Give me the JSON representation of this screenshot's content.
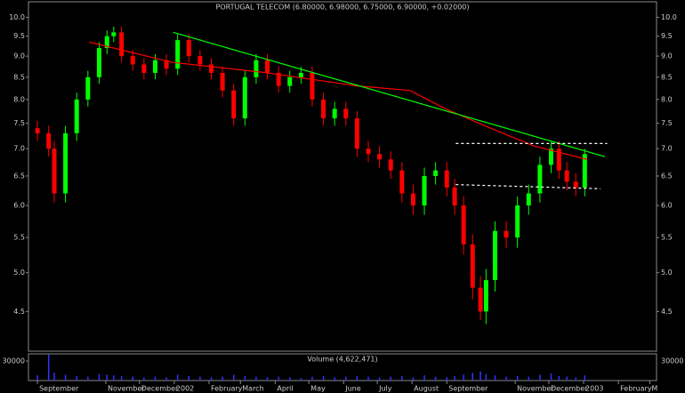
{
  "chart_data": [
    {
      "type": "candlestick",
      "title": "PORTUGAL TELECOM (6.80000, 6.98000, 6.75000, 6.90000, +0.02000)",
      "log_scale": true,
      "up_color": "#00ff00",
      "down_color": "#ff0000",
      "x": [
        0,
        10,
        15,
        25,
        35,
        45,
        55,
        62,
        68,
        75,
        85,
        95,
        105,
        115,
        125,
        135,
        145,
        155,
        165,
        175,
        185,
        195,
        205,
        215,
        225,
        235,
        245,
        255,
        265,
        275,
        285,
        295,
        305,
        315,
        325,
        335,
        345,
        355,
        365,
        372,
        380,
        388,
        395,
        400,
        408,
        418,
        428,
        438,
        448,
        458,
        465,
        472,
        480,
        488
      ],
      "open": [
        7.4,
        7.3,
        7.0,
        6.2,
        7.3,
        8.0,
        8.5,
        9.2,
        9.5,
        9.6,
        9.0,
        8.8,
        8.6,
        8.9,
        8.7,
        9.4,
        9.0,
        8.8,
        8.6,
        8.2,
        7.6,
        8.5,
        8.9,
        8.6,
        8.3,
        8.5,
        8.6,
        8.0,
        7.6,
        7.8,
        7.6,
        7.0,
        6.9,
        6.8,
        6.6,
        6.2,
        6.0,
        6.5,
        6.6,
        6.3,
        6.0,
        5.4,
        4.8,
        4.5,
        4.9,
        5.6,
        5.5,
        6.0,
        6.2,
        6.7,
        7.0,
        6.6,
        6.4,
        6.3
      ],
      "high": [
        7.55,
        7.45,
        7.15,
        7.45,
        8.15,
        8.65,
        9.35,
        9.65,
        9.75,
        9.75,
        9.15,
        8.95,
        9.05,
        9.05,
        9.55,
        9.55,
        9.15,
        8.95,
        8.75,
        8.35,
        8.65,
        9.05,
        9.05,
        8.75,
        8.65,
        8.75,
        8.75,
        8.15,
        7.95,
        7.95,
        7.75,
        7.15,
        7.05,
        6.95,
        6.75,
        6.35,
        6.65,
        6.75,
        6.75,
        6.45,
        6.15,
        5.55,
        4.95,
        5.05,
        5.75,
        5.75,
        6.15,
        6.35,
        6.85,
        7.15,
        7.15,
        6.75,
        6.55,
        7.0
      ],
      "low": [
        7.15,
        6.85,
        6.05,
        6.05,
        7.15,
        7.85,
        8.35,
        9.05,
        9.35,
        8.85,
        8.65,
        8.45,
        8.45,
        8.55,
        8.55,
        8.85,
        8.65,
        8.45,
        8.05,
        7.45,
        7.45,
        8.35,
        8.45,
        8.15,
        8.15,
        8.35,
        7.85,
        7.45,
        7.45,
        7.45,
        6.85,
        6.75,
        6.65,
        6.45,
        6.05,
        5.85,
        5.85,
        6.35,
        6.15,
        5.85,
        5.25,
        4.65,
        4.4,
        4.35,
        4.75,
        5.35,
        5.35,
        5.85,
        6.05,
        6.55,
        6.45,
        6.25,
        6.15,
        6.15
      ],
      "close": [
        7.3,
        7.0,
        6.2,
        7.3,
        8.0,
        8.5,
        9.2,
        9.5,
        9.6,
        9.0,
        8.8,
        8.6,
        8.9,
        8.7,
        9.4,
        9.0,
        8.8,
        8.6,
        8.2,
        7.6,
        8.5,
        8.9,
        8.6,
        8.3,
        8.5,
        8.6,
        8.0,
        7.6,
        7.8,
        7.6,
        7.0,
        6.9,
        6.8,
        6.6,
        6.2,
        6.0,
        6.5,
        6.6,
        6.3,
        6.0,
        5.4,
        4.8,
        4.5,
        4.9,
        5.6,
        5.5,
        6.0,
        6.2,
        6.7,
        7.0,
        6.6,
        6.4,
        6.3,
        6.9
      ],
      "overlays": [
        {
          "color": "#ff0000",
          "x": [
            46,
            120,
            205,
            285,
            332,
            364,
            404,
            443,
            490
          ],
          "values": [
            9.35,
            8.85,
            8.6,
            8.3,
            8.2,
            7.8,
            7.4,
            7.05,
            6.8
          ]
        },
        {
          "color": "#00ff00",
          "x": [
            121,
            506
          ],
          "values": [
            9.6,
            6.85
          ]
        },
        {
          "color": "#ffffff",
          "dashed": true,
          "x": [
            373,
            508
          ],
          "values": [
            7.1,
            7.1
          ]
        },
        {
          "color": "#ffffff",
          "dashed": true,
          "x": [
            373,
            502
          ],
          "values": [
            6.35,
            6.28
          ]
        }
      ],
      "xlim": [
        -8,
        552
      ],
      "ylim": [
        4.04,
        10.43
      ],
      "yticks": [
        4.5,
        {
          "value": 5,
          "label": "5.0"
        },
        5.5,
        {
          "value": 6,
          "label": "6.0"
        },
        6.5,
        {
          "value": 7,
          "label": "7.0"
        },
        7.5,
        {
          "value": 8,
          "label": "8.0"
        },
        8.5,
        {
          "value": 9,
          "label": "9.0"
        },
        9.5,
        {
          "value": 10,
          "label": "10.0"
        }
      ]
    },
    {
      "type": "bar",
      "title": "Volume (4,622,471)",
      "color": "#3333ff",
      "x": [
        0,
        10,
        15,
        25,
        35,
        45,
        55,
        62,
        68,
        75,
        85,
        95,
        105,
        115,
        125,
        135,
        145,
        155,
        165,
        175,
        185,
        195,
        205,
        215,
        225,
        235,
        245,
        255,
        265,
        275,
        285,
        295,
        305,
        315,
        325,
        335,
        345,
        355,
        365,
        372,
        380,
        388,
        395,
        400,
        408,
        418,
        428,
        438,
        448,
        458,
        465,
        472,
        480,
        488
      ],
      "values": [
        8000,
        40000,
        12000,
        9000,
        7000,
        6000,
        10000,
        9000,
        8000,
        7000,
        6000,
        5000,
        6000,
        5000,
        9000,
        7000,
        6000,
        5000,
        6000,
        9000,
        7000,
        6000,
        5000,
        6000,
        5000,
        4000,
        6000,
        7000,
        5000,
        6000,
        7000,
        6000,
        5000,
        6000,
        7000,
        5000,
        8000,
        6000,
        5000,
        7000,
        9000,
        12000,
        14000,
        10000,
        8000,
        6000,
        7000,
        6000,
        9000,
        11000,
        7000,
        6000,
        5000,
        8000
      ],
      "xlim": [
        -8,
        552
      ],
      "ylim": [
        0,
        41000
      ],
      "yticks": [
        30000
      ],
      "xticks": [
        {
          "value": 0,
          "label": "September"
        },
        {
          "value": 61,
          "label": "November"
        },
        {
          "value": 91,
          "label": "December"
        },
        {
          "value": 122,
          "label": "2002"
        },
        {
          "value": 153,
          "label": "February"
        },
        {
          "value": 181,
          "label": "March"
        },
        {
          "value": 212,
          "label": "April"
        },
        {
          "value": 242,
          "label": "May"
        },
        {
          "value": 273,
          "label": "June"
        },
        {
          "value": 303,
          "label": "July"
        },
        {
          "value": 334,
          "label": "August"
        },
        {
          "value": 365,
          "label": "September"
        },
        {
          "value": 426,
          "label": "November"
        },
        {
          "value": 456,
          "label": "December"
        },
        {
          "value": 487,
          "label": "2003"
        },
        {
          "value": 518,
          "label": "February"
        },
        {
          "value": 546,
          "label": "M"
        }
      ]
    }
  ]
}
